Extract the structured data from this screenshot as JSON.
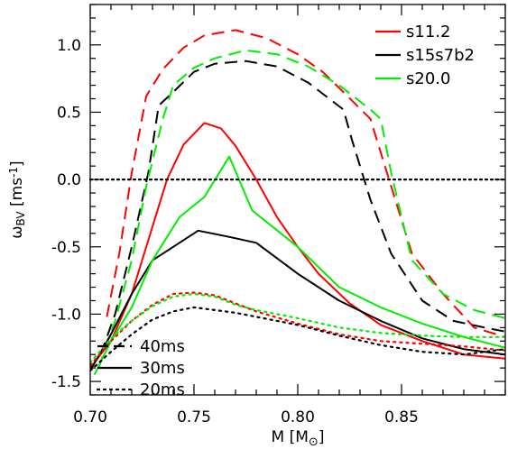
{
  "chart_data": {
    "type": "line",
    "xlabel": "M [M⊙]",
    "ylabel": "ωBV [ms⁻¹]",
    "xlim": [
      0.7,
      0.9
    ],
    "ylim": [
      -1.6,
      1.3
    ],
    "xticks": [
      0.7,
      0.75,
      0.8,
      0.85
    ],
    "xtick_labels": [
      "0.70",
      "0.75",
      "0.80",
      "0.85"
    ],
    "yticks": [
      -1.5,
      -1.0,
      -0.5,
      0.0,
      0.5,
      1.0
    ],
    "ytick_labels": [
      "-1.5",
      "-1.0",
      "-0.5",
      "0.0",
      "0.5",
      "1.0"
    ],
    "zero_line": 0.0,
    "grid": false,
    "model_legend_position": "top-right",
    "time_legend_position": "bottom-left",
    "models": [
      {
        "name": "s11.2",
        "color": "#ff0000"
      },
      {
        "name": "s15s7b2",
        "color": "#000000"
      },
      {
        "name": "s20.0",
        "color": "#00ee00"
      }
    ],
    "times": [
      {
        "name": "40ms",
        "dash": "dashed"
      },
      {
        "name": "30ms",
        "dash": "solid"
      },
      {
        "name": "20ms",
        "dash": "dotted"
      }
    ],
    "series": [
      {
        "model": "s11.2",
        "time": "40ms",
        "color": "#ff0000",
        "dash": "dashed",
        "x": [
          0.708,
          0.714,
          0.72,
          0.727,
          0.735,
          0.745,
          0.755,
          0.77,
          0.785,
          0.8,
          0.812,
          0.822,
          0.835,
          0.845,
          0.855,
          0.87,
          0.885,
          0.9
        ],
        "y": [
          -1.02,
          -0.55,
          0.05,
          0.62,
          0.82,
          0.98,
          1.07,
          1.11,
          1.05,
          0.93,
          0.8,
          0.65,
          0.45,
          -0.05,
          -0.55,
          -0.85,
          -1.1,
          -1.17
        ]
      },
      {
        "model": "s15s7b2",
        "time": "40ms",
        "color": "#000000",
        "dash": "dashed",
        "x": [
          0.705,
          0.712,
          0.72,
          0.728,
          0.733,
          0.74,
          0.75,
          0.76,
          0.775,
          0.79,
          0.805,
          0.822,
          0.826,
          0.835,
          0.845,
          0.86,
          0.875,
          0.89,
          0.9
        ],
        "y": [
          -1.3,
          -1.0,
          -0.5,
          0.05,
          0.55,
          0.65,
          0.8,
          0.86,
          0.88,
          0.84,
          0.72,
          0.52,
          0.3,
          -0.15,
          -0.55,
          -0.9,
          -1.05,
          -1.1,
          -1.13
        ]
      },
      {
        "model": "s20.0",
        "time": "40ms",
        "color": "#00ee00",
        "dash": "dashed",
        "x": [
          0.704,
          0.712,
          0.72,
          0.727,
          0.735,
          0.74,
          0.75,
          0.76,
          0.775,
          0.79,
          0.805,
          0.82,
          0.835,
          0.84,
          0.845,
          0.855,
          0.87,
          0.885,
          0.9
        ],
        "y": [
          -1.4,
          -1.05,
          -0.6,
          -0.05,
          0.45,
          0.7,
          0.83,
          0.9,
          0.96,
          0.93,
          0.84,
          0.7,
          0.52,
          0.45,
          0.05,
          -0.6,
          -0.85,
          -0.97,
          -1.03
        ]
      },
      {
        "model": "s11.2",
        "time": "30ms",
        "color": "#ff0000",
        "dash": "solid",
        "x": [
          0.7,
          0.71,
          0.72,
          0.73,
          0.737,
          0.745,
          0.755,
          0.763,
          0.77,
          0.78,
          0.79,
          0.8,
          0.81,
          0.825,
          0.84,
          0.86,
          0.88,
          0.9
        ],
        "y": [
          -1.4,
          -1.2,
          -0.85,
          -0.35,
          0.0,
          0.26,
          0.42,
          0.38,
          0.25,
          0.0,
          -0.28,
          -0.5,
          -0.7,
          -0.92,
          -1.08,
          -1.2,
          -1.3,
          -1.33
        ]
      },
      {
        "model": "s15s7b2",
        "time": "30ms",
        "color": "#000000",
        "dash": "solid",
        "x": [
          0.7,
          0.71,
          0.72,
          0.73,
          0.74,
          0.752,
          0.765,
          0.78,
          0.8,
          0.82,
          0.84,
          0.86,
          0.88,
          0.9
        ],
        "y": [
          -1.42,
          -1.15,
          -0.85,
          -0.6,
          -0.5,
          -0.38,
          -0.42,
          -0.47,
          -0.7,
          -0.9,
          -1.05,
          -1.18,
          -1.26,
          -1.3
        ]
      },
      {
        "model": "s20.0",
        "time": "30ms",
        "color": "#00ee00",
        "dash": "solid",
        "x": [
          0.702,
          0.71,
          0.72,
          0.73,
          0.743,
          0.755,
          0.767,
          0.778,
          0.8,
          0.82,
          0.84,
          0.86,
          0.88,
          0.9
        ],
        "y": [
          -1.45,
          -1.2,
          -0.95,
          -0.6,
          -0.28,
          -0.13,
          0.17,
          -0.23,
          -0.5,
          -0.8,
          -0.95,
          -1.07,
          -1.17,
          -1.25
        ]
      },
      {
        "model": "s11.2",
        "time": "20ms",
        "color": "#ff0000",
        "dash": "dotted",
        "x": [
          0.7,
          0.71,
          0.72,
          0.73,
          0.74,
          0.75,
          0.76,
          0.77,
          0.78,
          0.8,
          0.82,
          0.84,
          0.86,
          0.88,
          0.9
        ],
        "y": [
          -1.38,
          -1.2,
          -1.05,
          -0.93,
          -0.85,
          -0.84,
          -0.86,
          -0.92,
          -0.98,
          -1.07,
          -1.15,
          -1.2,
          -1.22,
          -1.24,
          -1.27
        ]
      },
      {
        "model": "s15s7b2",
        "time": "20ms",
        "color": "#000000",
        "dash": "dotted",
        "x": [
          0.7,
          0.71,
          0.72,
          0.73,
          0.74,
          0.75,
          0.76,
          0.77,
          0.78,
          0.8,
          0.82,
          0.84,
          0.86,
          0.88,
          0.9
        ],
        "y": [
          -1.42,
          -1.28,
          -1.15,
          -1.04,
          -0.98,
          -0.95,
          -0.97,
          -0.99,
          -1.02,
          -1.08,
          -1.16,
          -1.23,
          -1.28,
          -1.3,
          -1.26
        ]
      },
      {
        "model": "s20.0",
        "time": "20ms",
        "color": "#00ee00",
        "dash": "dotted",
        "x": [
          0.7,
          0.71,
          0.72,
          0.73,
          0.74,
          0.75,
          0.76,
          0.77,
          0.78,
          0.8,
          0.82,
          0.84,
          0.86,
          0.88,
          0.9
        ],
        "y": [
          -1.36,
          -1.18,
          -1.05,
          -0.94,
          -0.87,
          -0.85,
          -0.87,
          -0.93,
          -0.97,
          -1.03,
          -1.1,
          -1.14,
          -1.16,
          -1.17,
          -1.17
        ]
      }
    ]
  }
}
